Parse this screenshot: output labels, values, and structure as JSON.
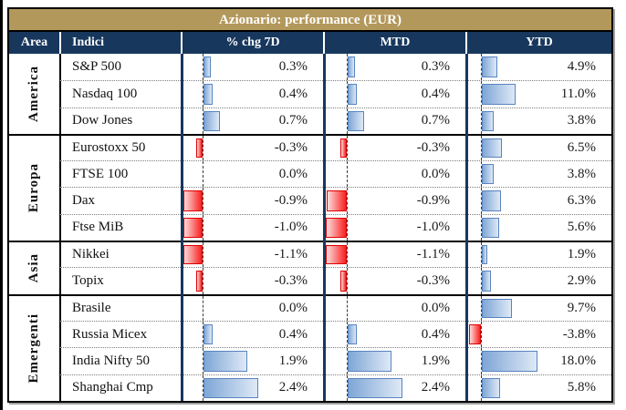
{
  "title": "Azionario: performance (EUR)",
  "header": [
    "Area",
    "Indici",
    "% chg 7D",
    "MTD",
    "YTD"
  ],
  "colors": {
    "title_bg": "#B3985C",
    "header_bg": "#17375D",
    "positive_bar": "#5884BE",
    "negative_bar": "#DE0000"
  },
  "chart_data": {
    "type": "table",
    "title": "Azionario: performance (EUR)",
    "columns": [
      "Area",
      "Indici",
      "% chg 7D",
      "MTD",
      "YTD"
    ],
    "value_unit": "%",
    "bar_style": "conditional data bars: blue gradient positive, red gradient negative, dashed zero axis",
    "value_ranges": {
      "chg7d": [
        -1.1,
        2.4
      ],
      "mtd": [
        -1.1,
        2.4
      ],
      "ytd": [
        -3.8,
        18.0
      ]
    },
    "groups": [
      {
        "area": "America",
        "rows": [
          {
            "index": "S&P 500",
            "chg7d": 0.3,
            "mtd": 0.3,
            "ytd": 4.9
          },
          {
            "index": "Nasdaq 100",
            "chg7d": 0.4,
            "mtd": 0.4,
            "ytd": 11.0
          },
          {
            "index": "Dow Jones",
            "chg7d": 0.7,
            "mtd": 0.7,
            "ytd": 3.8
          }
        ]
      },
      {
        "area": "Europa",
        "rows": [
          {
            "index": "Eurostoxx 50",
            "chg7d": -0.3,
            "mtd": -0.3,
            "ytd": 6.5
          },
          {
            "index": "FTSE 100",
            "chg7d": 0.0,
            "mtd": 0.0,
            "ytd": 3.8
          },
          {
            "index": "Dax",
            "chg7d": -0.9,
            "mtd": -0.9,
            "ytd": 6.3
          },
          {
            "index": "Ftse MiB",
            "chg7d": -1.0,
            "mtd": -1.0,
            "ytd": 5.6
          }
        ]
      },
      {
        "area": "Asia",
        "rows": [
          {
            "index": "Nikkei",
            "chg7d": -1.1,
            "mtd": -1.1,
            "ytd": 1.9
          },
          {
            "index": "Topix",
            "chg7d": -0.3,
            "mtd": -0.3,
            "ytd": 2.9
          }
        ]
      },
      {
        "area": "Emergenti",
        "rows": [
          {
            "index": "Brasile",
            "chg7d": 0.0,
            "mtd": 0.0,
            "ytd": 9.7
          },
          {
            "index": "Russia Micex",
            "chg7d": 0.4,
            "mtd": 0.4,
            "ytd": -3.8
          },
          {
            "index": "India Nifty 50",
            "chg7d": 1.9,
            "mtd": 1.9,
            "ytd": 18.0
          },
          {
            "index": "Shanghai Cmp",
            "chg7d": 2.4,
            "mtd": 2.4,
            "ytd": 5.8
          }
        ]
      }
    ]
  }
}
